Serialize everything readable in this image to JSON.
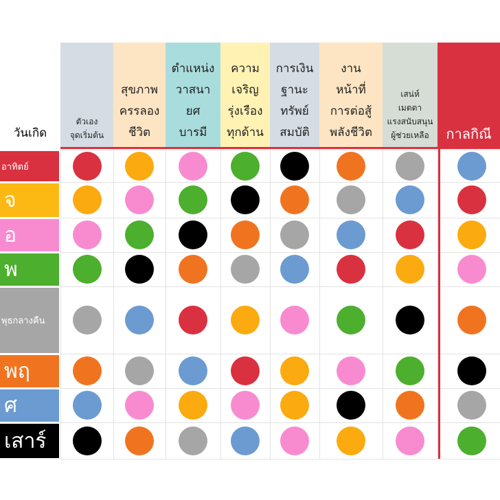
{
  "header": {
    "corner": "วันเกิด",
    "columns": [
      {
        "label": "ตัวเอง\nจุดเริ่มต้น",
        "background": "#d6dce4",
        "small": true
      },
      {
        "label": "สุขภาพ\nครรลอง\nชีวิต",
        "background": "#fde5c3"
      },
      {
        "label": "ตำแหน่ง\nวาสนา\nยศ\nบารมี",
        "background": "#a9dcdc"
      },
      {
        "label": "ความ\nเจริญ\nรุ่งเรือง\nทุกด้าน",
        "background": "#fff2b3"
      },
      {
        "label": "การเงิน\nฐานะ\nทรัพย์\nสมบัติ",
        "background": "#d6dce4"
      },
      {
        "label": "งาน\nหน้าที่\nการต่อสู้\nพลังชีวิต",
        "background": "#fde5c3"
      },
      {
        "label": "เสน่ห์\nเมตตา\nแรงสนับสนุน\nผู้ช่วยเหลือ",
        "background": "#d5ddd5",
        "small": true
      },
      {
        "label": "กาลกิณี",
        "background": "#d9313f",
        "text_color": "#ffffff"
      }
    ]
  },
  "table": {
    "rows": [
      {
        "day": "อาทิตย์",
        "background": "#d9313f",
        "text_color": "#ffffff",
        "dots": [
          "#d9313f",
          "#fbaa0f",
          "#f88bd0",
          "#4caf2e",
          "#000000",
          "#f07420",
          "#a6a6a6",
          "#6b9bd1"
        ]
      },
      {
        "day": "จ",
        "background": "#fdb913",
        "text_color": "#ffffff",
        "dots": [
          "#fbaa0f",
          "#f88bd0",
          "#4caf2e",
          "#000000",
          "#f07420",
          "#a6a6a6",
          "#6b9bd1",
          "#d9313f"
        ]
      },
      {
        "day": "อ",
        "background": "#f88bd0",
        "text_color": "#ffffff",
        "dots": [
          "#f88bd0",
          "#4caf2e",
          "#000000",
          "#f07420",
          "#a6a6a6",
          "#6b9bd1",
          "#d9313f",
          "#fbaa0f"
        ]
      },
      {
        "day": "พ",
        "background": "#4caf2e",
        "text_color": "#ffffff",
        "dots": [
          "#4caf2e",
          "#000000",
          "#f07420",
          "#a6a6a6",
          "#6b9bd1",
          "#d9313f",
          "#fbaa0f",
          "#f88bd0"
        ]
      },
      {
        "day": "พุธกลางคืน",
        "background": "#a6a6a6",
        "text_color": "#ffffff",
        "dots": [
          "#a6a6a6",
          "#6b9bd1",
          "#d9313f",
          "#fbaa0f",
          "#f88bd0",
          "#4caf2e",
          "#000000",
          "#f07420"
        ]
      },
      {
        "day": "พฤ",
        "background": "#f07420",
        "text_color": "#ffffff",
        "dots": [
          "#f07420",
          "#a6a6a6",
          "#6b9bd1",
          "#d9313f",
          "#fbaa0f",
          "#f88bd0",
          "#4caf2e",
          "#000000"
        ]
      },
      {
        "day": "ศ",
        "background": "#6b9bd1",
        "text_color": "#ffffff",
        "dots": [
          "#6b9bd1",
          "#f88bd0",
          "#fbaa0f",
          "#f88bd0",
          "#fbaa0f",
          "#000000",
          "#f07420",
          "#a6a6a6"
        ]
      },
      {
        "day": "เสาร์",
        "background": "#000000",
        "text_color": "#ffffff",
        "dots": [
          "#000000",
          "#f07420",
          "#a6a6a6",
          "#6b9bd1",
          "#f88bd0",
          "#fbaa0f",
          "#f88bd0",
          "#4caf2e"
        ]
      }
    ]
  }
}
